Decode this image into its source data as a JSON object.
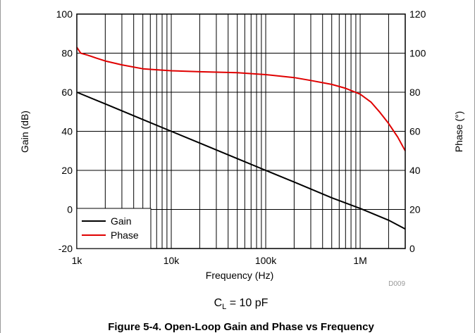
{
  "chart_data": {
    "type": "line",
    "xlabel": "Frequency (Hz)",
    "ylabel_left": "Gain (dB)",
    "ylabel_right": "Phase (°)",
    "x_scale": "log",
    "xlim": [
      1000,
      3000000
    ],
    "ylim_left": [
      -20,
      100
    ],
    "ylim_right": [
      0,
      120
    ],
    "x_ticks": [
      {
        "value": 1000,
        "label": "1k"
      },
      {
        "value": 10000,
        "label": "10k"
      },
      {
        "value": 100000,
        "label": "100k"
      },
      {
        "value": 1000000,
        "label": "1M"
      }
    ],
    "y_ticks_left": [
      {
        "value": 100,
        "label": "100"
      },
      {
        "value": 80,
        "label": "80"
      },
      {
        "value": 60,
        "label": "60"
      },
      {
        "value": 40,
        "label": "40"
      },
      {
        "value": 20,
        "label": "20"
      },
      {
        "value": 0,
        "label": "0"
      },
      {
        "value": -20,
        "label": "-20"
      }
    ],
    "y_ticks_right": [
      {
        "value": 120,
        "label": "120"
      },
      {
        "value": 100,
        "label": "100"
      },
      {
        "value": 80,
        "label": "80"
      },
      {
        "value": 60,
        "label": "60"
      },
      {
        "value": 40,
        "label": "40"
      },
      {
        "value": 20,
        "label": "20"
      },
      {
        "value": 0,
        "label": "0"
      }
    ],
    "grid": true,
    "legend": "bottom-left",
    "series": [
      {
        "name": "Gain",
        "axis": "left",
        "color": "#000000",
        "x": [
          1000,
          2000,
          5000,
          10000,
          20000,
          50000,
          100000,
          200000,
          500000,
          1000000,
          2000000,
          3000000
        ],
        "y": [
          60,
          54,
          46,
          40,
          34,
          26,
          20,
          14,
          6,
          0.5,
          -5.5,
          -10
        ]
      },
      {
        "name": "Phase",
        "axis": "right",
        "color": "#e00000",
        "x": [
          1000,
          1100,
          1300,
          1600,
          2000,
          3000,
          5000,
          7000,
          10000,
          20000,
          50000,
          100000,
          200000,
          300000,
          500000,
          700000,
          1000000,
          1300000,
          1600000,
          2000000,
          2500000,
          3000000
        ],
        "y": [
          103,
          100,
          99,
          97.5,
          96,
          94,
          92,
          91.5,
          91,
          90.5,
          90,
          89,
          87.5,
          86,
          84,
          82,
          79,
          75,
          70,
          64,
          57,
          50
        ]
      }
    ],
    "watermark": "D009"
  },
  "condition": {
    "label_main": "C",
    "label_sub": "L",
    "label_rest": " = 10 pF"
  },
  "caption": "Figure 5-4. Open-Loop Gain and Phase vs Frequency"
}
